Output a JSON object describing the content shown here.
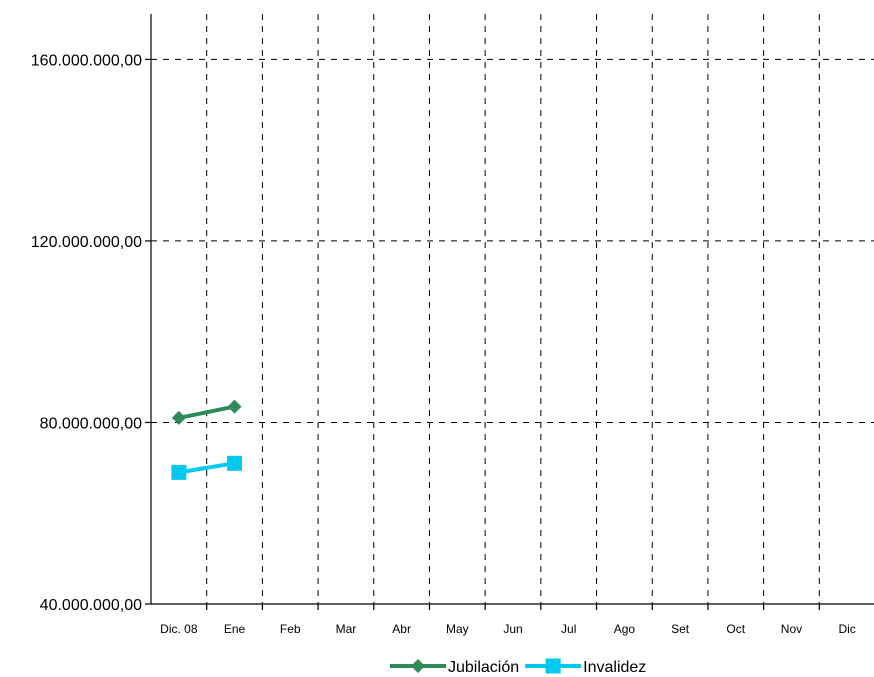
{
  "chart_data": {
    "type": "line",
    "title": "",
    "xlabel": "",
    "ylabel": "",
    "categories": [
      "Dic. 08",
      "Ene",
      "Feb",
      "Mar",
      "Abr",
      "May",
      "Jun",
      "Jul",
      "Ago",
      "Set",
      "Oct",
      "Nov",
      "Dic"
    ],
    "y_ticks": [
      "40.000.000,00",
      "80.000.000,00",
      "120.000.000,00",
      "160.000.000,00"
    ],
    "y_tick_values": [
      40000000,
      80000000,
      120000000,
      160000000
    ],
    "ylim": [
      40000000,
      170000000
    ],
    "grid": true,
    "legend_position": "bottom",
    "series": [
      {
        "name": "Jubilación",
        "color": "#2e8b57",
        "marker": "diamond",
        "values": [
          81000000,
          83500000,
          null,
          null,
          null,
          null,
          null,
          null,
          null,
          null,
          null,
          null,
          null
        ]
      },
      {
        "name": "Invalidez",
        "color": "#00c8f0",
        "marker": "square",
        "values": [
          69000000,
          71000000,
          null,
          null,
          null,
          null,
          null,
          null,
          null,
          null,
          null,
          null,
          null
        ]
      }
    ]
  }
}
